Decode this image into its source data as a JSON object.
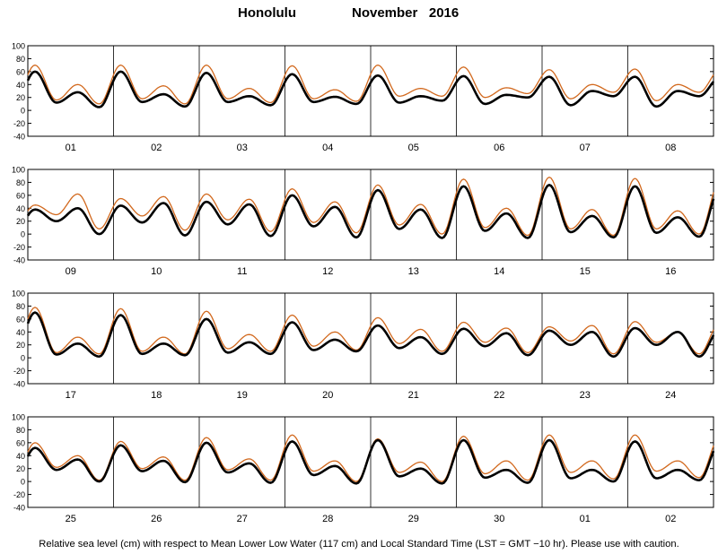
{
  "header": {
    "station": "Honolulu",
    "month_year": "November   2016"
  },
  "caption": "Relative sea level (cm) with respect to Mean Lower Low Water (117 cm) and Local Standard Time (LST = GMT −10 hr). Please use with caution.",
  "colors": {
    "observed": "#000000",
    "predicted": "#d2691e"
  },
  "chart_data": {
    "type": "line",
    "y_ticks": [
      100,
      80,
      60,
      40,
      20,
      0,
      -20,
      -40
    ],
    "ylim": [
      -40,
      100
    ],
    "grid": "vertical lines at day boundaries",
    "x_unit": "day",
    "series_style": [
      {
        "color": "#000000",
        "width": "thick"
      },
      {
        "color": "#d2691e",
        "width": "thin"
      }
    ],
    "panels": [
      {
        "days": [
          "01",
          "02",
          "03",
          "04",
          "05",
          "06",
          "07",
          "08"
        ],
        "day_values": [
          1,
          2,
          3,
          4,
          5,
          6,
          7,
          8
        ],
        "observed": {
          "high1": [
            60,
            60,
            58,
            56,
            54,
            53,
            52,
            52
          ],
          "high2": [
            28,
            25,
            22,
            21,
            22,
            24,
            30,
            30
          ],
          "low1": [
            12,
            13,
            13,
            13,
            12,
            10,
            8,
            6
          ],
          "low2": [
            5,
            6,
            8,
            10,
            15,
            20,
            22,
            22
          ]
        },
        "predicted": {
          "high1": [
            70,
            70,
            70,
            69,
            70,
            67,
            63,
            64
          ],
          "high2": [
            40,
            38,
            34,
            32,
            34,
            35,
            40,
            40
          ],
          "low1": [
            16,
            18,
            18,
            18,
            22,
            20,
            18,
            15
          ],
          "low2": [
            10,
            10,
            12,
            14,
            22,
            26,
            28,
            28
          ]
        }
      },
      {
        "days": [
          "09",
          "10",
          "11",
          "12",
          "13",
          "14",
          "15",
          "16"
        ],
        "day_values": [
          9,
          10,
          11,
          12,
          13,
          14,
          15,
          16
        ],
        "observed": {
          "high1": [
            38,
            44,
            50,
            60,
            68,
            74,
            76,
            74
          ],
          "high2": [
            40,
            48,
            46,
            42,
            38,
            32,
            28,
            26
          ],
          "low1": [
            20,
            18,
            15,
            12,
            8,
            5,
            3,
            2
          ],
          "low2": [
            0,
            -2,
            -3,
            -5,
            -6,
            -6,
            -5,
            -4
          ]
        },
        "predicted": {
          "high1": [
            45,
            55,
            62,
            70,
            76,
            85,
            88,
            86
          ],
          "high2": [
            62,
            58,
            54,
            50,
            46,
            40,
            38,
            36
          ],
          "low1": [
            30,
            28,
            22,
            18,
            14,
            10,
            8,
            8
          ],
          "low2": [
            8,
            6,
            4,
            2,
            0,
            -2,
            -2,
            0
          ]
        }
      },
      {
        "days": [
          "17",
          "18",
          "19",
          "20",
          "21",
          "22",
          "23",
          "24"
        ],
        "day_values": [
          17,
          18,
          19,
          20,
          21,
          22,
          23,
          24
        ],
        "observed": {
          "high1": [
            70,
            66,
            60,
            55,
            50,
            45,
            42,
            46
          ],
          "high2": [
            22,
            22,
            24,
            28,
            32,
            38,
            40,
            40
          ],
          "low1": [
            5,
            6,
            8,
            12,
            15,
            18,
            20,
            20
          ],
          "low2": [
            2,
            4,
            6,
            10,
            6,
            4,
            2,
            2
          ]
        },
        "predicted": {
          "high1": [
            78,
            76,
            72,
            66,
            62,
            55,
            48,
            56
          ],
          "high2": [
            32,
            32,
            36,
            40,
            44,
            46,
            50,
            40
          ],
          "low1": [
            8,
            10,
            14,
            18,
            22,
            24,
            26,
            24
          ],
          "low2": [
            6,
            6,
            10,
            12,
            10,
            8,
            6,
            6
          ]
        }
      },
      {
        "days": [
          "25",
          "26",
          "27",
          "28",
          "29",
          "30",
          "01",
          "02"
        ],
        "day_values": [
          25,
          26,
          27,
          28,
          29,
          30,
          1,
          2
        ],
        "observed": {
          "high1": [
            52,
            56,
            60,
            62,
            64,
            64,
            64,
            62
          ],
          "high2": [
            34,
            32,
            28,
            24,
            20,
            18,
            18,
            18
          ],
          "low1": [
            18,
            16,
            14,
            10,
            8,
            6,
            5,
            5
          ],
          "low2": [
            0,
            -1,
            -2,
            -3,
            -3,
            -2,
            0,
            2
          ]
        },
        "predicted": {
          "high1": [
            60,
            62,
            68,
            72,
            66,
            70,
            72,
            72
          ],
          "high2": [
            40,
            38,
            35,
            32,
            30,
            32,
            32,
            32
          ],
          "low1": [
            22,
            20,
            18,
            16,
            14,
            12,
            14,
            16
          ],
          "low2": [
            2,
            2,
            2,
            0,
            0,
            2,
            4,
            6
          ]
        }
      }
    ]
  }
}
